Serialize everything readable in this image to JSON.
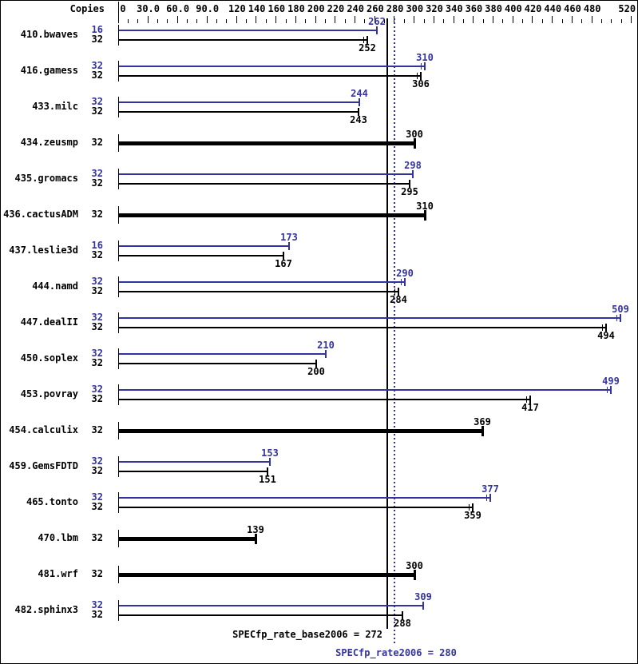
{
  "header": {
    "copies_label": "Copies"
  },
  "colors": {
    "peak_blue": "#3333a0",
    "base_black": "#000000",
    "background": "#ffffff"
  },
  "chart_data": {
    "type": "bar",
    "orientation": "horizontal",
    "title": "",
    "grid": false,
    "legend": "none",
    "xlim": [
      0,
      520
    ],
    "value_axis": {
      "position": "top",
      "min": 0,
      "max": 520,
      "minor_tick_step": 10,
      "ticks": [
        {
          "v": 0,
          "label": "0"
        },
        {
          "v": 30,
          "label": "30.0"
        },
        {
          "v": 60,
          "label": "60.0"
        },
        {
          "v": 90,
          "label": "90.0"
        },
        {
          "v": 120,
          "label": "120"
        },
        {
          "v": 140,
          "label": "140"
        },
        {
          "v": 160,
          "label": "160"
        },
        {
          "v": 180,
          "label": "180"
        },
        {
          "v": 200,
          "label": "200"
        },
        {
          "v": 220,
          "label": "220"
        },
        {
          "v": 240,
          "label": "240"
        },
        {
          "v": 260,
          "label": "260"
        },
        {
          "v": 280,
          "label": "280"
        },
        {
          "v": 300,
          "label": "300"
        },
        {
          "v": 320,
          "label": "320"
        },
        {
          "v": 340,
          "label": "340"
        },
        {
          "v": 360,
          "label": "360"
        },
        {
          "v": 380,
          "label": "380"
        },
        {
          "v": 400,
          "label": "400"
        },
        {
          "v": 420,
          "label": "420"
        },
        {
          "v": 440,
          "label": "440"
        },
        {
          "v": 460,
          "label": "460"
        },
        {
          "v": 480,
          "label": "480"
        },
        {
          "v": 520,
          "label": "520"
        }
      ]
    },
    "series": [
      {
        "name": "peak",
        "color": "#3333a0"
      },
      {
        "name": "base",
        "color": "#000000"
      }
    ],
    "rows": [
      {
        "category": "410.bwaves",
        "bars": [
          {
            "series": "peak",
            "style": "line",
            "copies": 16,
            "value": 262,
            "spread": false
          },
          {
            "series": "base",
            "style": "line",
            "copies": 32,
            "value": 252,
            "spread": true
          }
        ]
      },
      {
        "category": "416.gamess",
        "bars": [
          {
            "series": "peak",
            "style": "line",
            "copies": 32,
            "value": 310,
            "spread": true
          },
          {
            "series": "base",
            "style": "line",
            "copies": 32,
            "value": 306,
            "spread": true
          }
        ]
      },
      {
        "category": "433.milc",
        "bars": [
          {
            "series": "peak",
            "style": "line",
            "copies": 32,
            "value": 244,
            "spread": false
          },
          {
            "series": "base",
            "style": "line",
            "copies": 32,
            "value": 243,
            "spread": false
          }
        ]
      },
      {
        "category": "434.zeusmp",
        "bars": [
          {
            "series": "base",
            "style": "thick",
            "copies": 32,
            "value": 300,
            "spread": false
          }
        ]
      },
      {
        "category": "435.gromacs",
        "bars": [
          {
            "series": "peak",
            "style": "line",
            "copies": 32,
            "value": 298,
            "spread": false
          },
          {
            "series": "base",
            "style": "line",
            "copies": 32,
            "value": 295,
            "spread": false
          }
        ]
      },
      {
        "category": "436.cactusADM",
        "bars": [
          {
            "series": "base",
            "style": "thick",
            "copies": 32,
            "value": 310,
            "spread": false
          }
        ]
      },
      {
        "category": "437.leslie3d",
        "bars": [
          {
            "series": "peak",
            "style": "line",
            "copies": 16,
            "value": 173,
            "spread": false
          },
          {
            "series": "base",
            "style": "line",
            "copies": 32,
            "value": 167,
            "spread": false
          }
        ]
      },
      {
        "category": "444.namd",
        "bars": [
          {
            "series": "peak",
            "style": "line",
            "copies": 32,
            "value": 290,
            "spread": true
          },
          {
            "series": "base",
            "style": "line",
            "copies": 32,
            "value": 284,
            "spread": true
          }
        ]
      },
      {
        "category": "447.dealII",
        "bars": [
          {
            "series": "peak",
            "style": "line",
            "copies": 32,
            "value": 509,
            "spread": true
          },
          {
            "series": "base",
            "style": "line",
            "copies": 32,
            "value": 494,
            "spread": true
          }
        ]
      },
      {
        "category": "450.soplex",
        "bars": [
          {
            "series": "peak",
            "style": "line",
            "copies": 32,
            "value": 210,
            "spread": false
          },
          {
            "series": "base",
            "style": "line",
            "copies": 32,
            "value": 200,
            "spread": false
          }
        ]
      },
      {
        "category": "453.povray",
        "bars": [
          {
            "series": "peak",
            "style": "line",
            "copies": 32,
            "value": 499,
            "spread": true
          },
          {
            "series": "base",
            "style": "line",
            "copies": 32,
            "value": 417,
            "spread": true
          }
        ]
      },
      {
        "category": "454.calculix",
        "bars": [
          {
            "series": "base",
            "style": "thick",
            "copies": 32,
            "value": 369,
            "spread": false
          }
        ]
      },
      {
        "category": "459.GemsFDTD",
        "bars": [
          {
            "series": "peak",
            "style": "line",
            "copies": 32,
            "value": 153,
            "spread": false
          },
          {
            "series": "base",
            "style": "line",
            "copies": 32,
            "value": 151,
            "spread": false
          }
        ]
      },
      {
        "category": "465.tonto",
        "bars": [
          {
            "series": "peak",
            "style": "line",
            "copies": 32,
            "value": 377,
            "spread": true
          },
          {
            "series": "base",
            "style": "line",
            "copies": 32,
            "value": 359,
            "spread": true
          }
        ]
      },
      {
        "category": "470.lbm",
        "bars": [
          {
            "series": "base",
            "style": "thick",
            "copies": 32,
            "value": 139,
            "spread": false
          }
        ]
      },
      {
        "category": "481.wrf",
        "bars": [
          {
            "series": "base",
            "style": "thick",
            "copies": 32,
            "value": 300,
            "spread": false
          }
        ]
      },
      {
        "category": "482.sphinx3",
        "bars": [
          {
            "series": "peak",
            "style": "line",
            "copies": 32,
            "value": 309,
            "spread": false
          },
          {
            "series": "base",
            "style": "line",
            "copies": 32,
            "value": 288,
            "spread": false
          }
        ]
      }
    ],
    "reference_lines": [
      {
        "name": "base_mean",
        "label": "SPECfp_rate_base2006 = 272",
        "value": 272,
        "style": "solid",
        "color": "#000000"
      },
      {
        "name": "peak_mean",
        "label": "SPECfp_rate2006 = 280",
        "value": 280,
        "style": "dotted",
        "color": "#3333a0"
      }
    ]
  }
}
